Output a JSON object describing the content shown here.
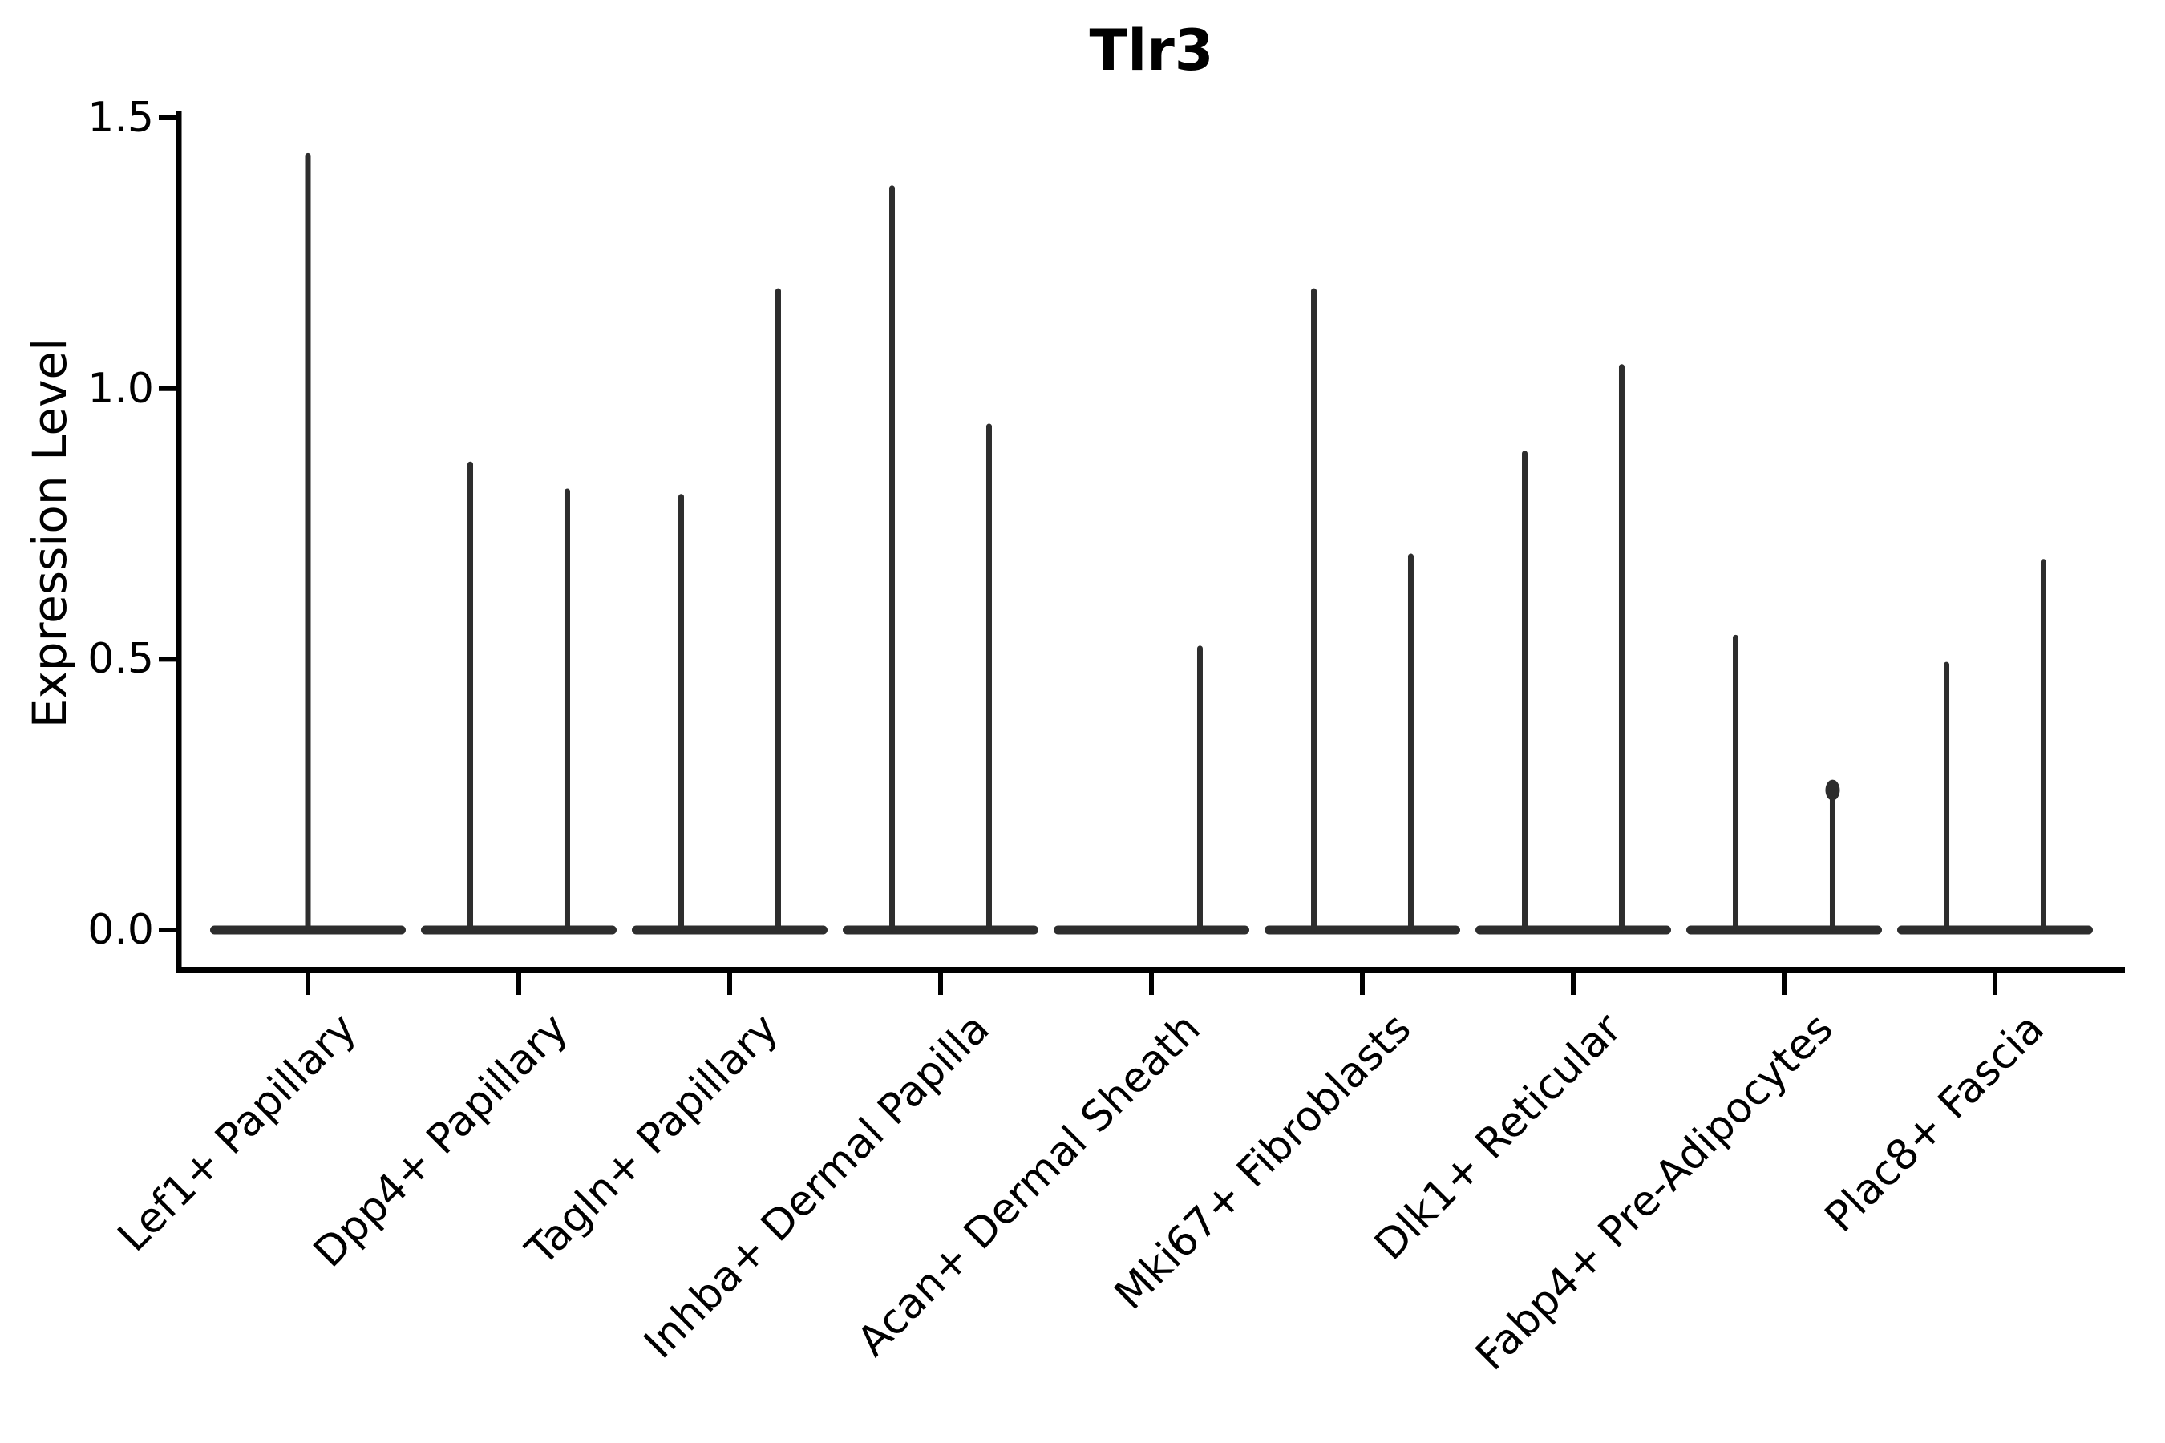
{
  "title": "Tlr3",
  "ylabel": "Expression Level",
  "colors": {
    "violin_line": "#2d2d2d",
    "axis": "#000000",
    "background": "#ffffff"
  },
  "chart_data": {
    "type": "violin",
    "title": "Tlr3",
    "xlabel": "",
    "ylabel": "Expression Level",
    "ylim": [
      0,
      1.5
    ],
    "yticks": [
      "0.0",
      "0.5",
      "1.0",
      "1.5"
    ],
    "grid": false,
    "legend": false,
    "categories": [
      "Lef1+ Papillary",
      "Dpp4+ Papillary",
      "Tagln+ Papillary",
      "Inhba+ Dermal Papilla",
      "Acan+ Dermal Sheath",
      "Mki67+ Fibroblasts",
      "Dlk1+ Reticular",
      "Fabp4+ Pre-Adipocytes",
      "Plac8+ Fascia"
    ],
    "description": "Each category shows a flattened violin at expression 0 with thin density spikes reaching the maximum expression of up to two sub-groups; offset is the spike position as a fraction of category spacing.",
    "violins": [
      {
        "category": "Lef1+ Papillary",
        "spikes": [
          {
            "offset": 0.0,
            "max": 1.43
          }
        ]
      },
      {
        "category": "Dpp4+ Papillary",
        "spikes": [
          {
            "offset": -0.23,
            "max": 0.86
          },
          {
            "offset": 0.23,
            "max": 0.81
          }
        ]
      },
      {
        "category": "Tagln+ Papillary",
        "spikes": [
          {
            "offset": -0.23,
            "max": 0.8
          },
          {
            "offset": 0.23,
            "max": 1.18
          }
        ]
      },
      {
        "category": "Inhba+ Dermal Papilla",
        "spikes": [
          {
            "offset": -0.23,
            "max": 1.37
          },
          {
            "offset": 0.23,
            "max": 0.93
          }
        ]
      },
      {
        "category": "Acan+ Dermal Sheath",
        "spikes": [
          {
            "offset": 0.23,
            "max": 0.52
          }
        ]
      },
      {
        "category": "Mki67+ Fibroblasts",
        "spikes": [
          {
            "offset": -0.23,
            "max": 1.18
          },
          {
            "offset": 0.23,
            "max": 0.69
          }
        ]
      },
      {
        "category": "Dlk1+ Reticular",
        "spikes": [
          {
            "offset": -0.23,
            "max": 0.88
          },
          {
            "offset": 0.23,
            "max": 1.04
          }
        ]
      },
      {
        "category": "Fabp4+ Pre-Adipocytes",
        "spikes": [
          {
            "offset": -0.23,
            "max": 0.54
          },
          {
            "offset": 0.23,
            "max": 0.27,
            "knob": true
          }
        ]
      },
      {
        "category": "Plac8+ Fascia",
        "spikes": [
          {
            "offset": -0.23,
            "max": 0.49
          },
          {
            "offset": 0.23,
            "max": 0.68
          }
        ]
      }
    ]
  }
}
